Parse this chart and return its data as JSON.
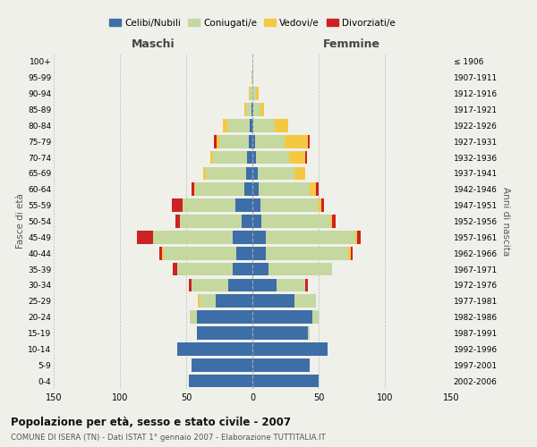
{
  "age_groups": [
    "0-4",
    "5-9",
    "10-14",
    "15-19",
    "20-24",
    "25-29",
    "30-34",
    "35-39",
    "40-44",
    "45-49",
    "50-54",
    "55-59",
    "60-64",
    "65-69",
    "70-74",
    "75-79",
    "80-84",
    "85-89",
    "90-94",
    "95-99",
    "100+"
  ],
  "birth_years": [
    "2002-2006",
    "1997-2001",
    "1992-1996",
    "1987-1991",
    "1982-1986",
    "1977-1981",
    "1972-1976",
    "1967-1971",
    "1962-1966",
    "1957-1961",
    "1952-1956",
    "1947-1951",
    "1942-1946",
    "1937-1941",
    "1932-1936",
    "1927-1931",
    "1922-1926",
    "1917-1921",
    "1912-1916",
    "1907-1911",
    "≤ 1906"
  ],
  "maschi": {
    "celibi": [
      48,
      46,
      57,
      42,
      42,
      28,
      18,
      15,
      12,
      15,
      8,
      13,
      6,
      5,
      4,
      3,
      2,
      1,
      0,
      0,
      0
    ],
    "coniugati": [
      0,
      0,
      0,
      0,
      5,
      12,
      28,
      42,
      55,
      60,
      47,
      40,
      37,
      30,
      26,
      22,
      17,
      4,
      2,
      1,
      0
    ],
    "vedovi": [
      0,
      0,
      0,
      0,
      0,
      1,
      0,
      0,
      1,
      0,
      0,
      0,
      1,
      2,
      2,
      2,
      3,
      1,
      1,
      0,
      0
    ],
    "divorziati": [
      0,
      0,
      0,
      0,
      0,
      0,
      2,
      3,
      2,
      12,
      3,
      8,
      2,
      0,
      0,
      2,
      0,
      0,
      0,
      0,
      0
    ]
  },
  "femmine": {
    "nubili": [
      50,
      43,
      57,
      42,
      45,
      32,
      18,
      12,
      10,
      10,
      7,
      6,
      5,
      4,
      3,
      2,
      1,
      1,
      0,
      0,
      0
    ],
    "coniugate": [
      0,
      0,
      0,
      1,
      5,
      16,
      22,
      48,
      62,
      68,
      52,
      44,
      38,
      28,
      25,
      22,
      16,
      5,
      3,
      1,
      0
    ],
    "vedove": [
      0,
      0,
      0,
      0,
      0,
      0,
      0,
      0,
      2,
      1,
      1,
      2,
      5,
      8,
      12,
      18,
      10,
      3,
      2,
      0,
      0
    ],
    "divorziate": [
      0,
      0,
      0,
      0,
      0,
      0,
      2,
      0,
      2,
      3,
      3,
      2,
      2,
      0,
      1,
      1,
      0,
      0,
      0,
      0,
      0
    ]
  },
  "color_celibi": "#3d6ea8",
  "color_coniugati": "#c5d8a0",
  "color_vedovi": "#f5c842",
  "color_divorziati": "#cc2222",
  "title": "Popolazione per età, sesso e stato civile - 2007",
  "subtitle": "COMUNE DI ISERA (TN) - Dati ISTAT 1° gennaio 2007 - Elaborazione TUTTITALIA.IT",
  "xlabel_left": "Maschi",
  "xlabel_right": "Femmine",
  "ylabel_left": "Fasce di età",
  "ylabel_right": "Anni di nascita",
  "xlim": 150,
  "background_color": "#f0f0eb"
}
